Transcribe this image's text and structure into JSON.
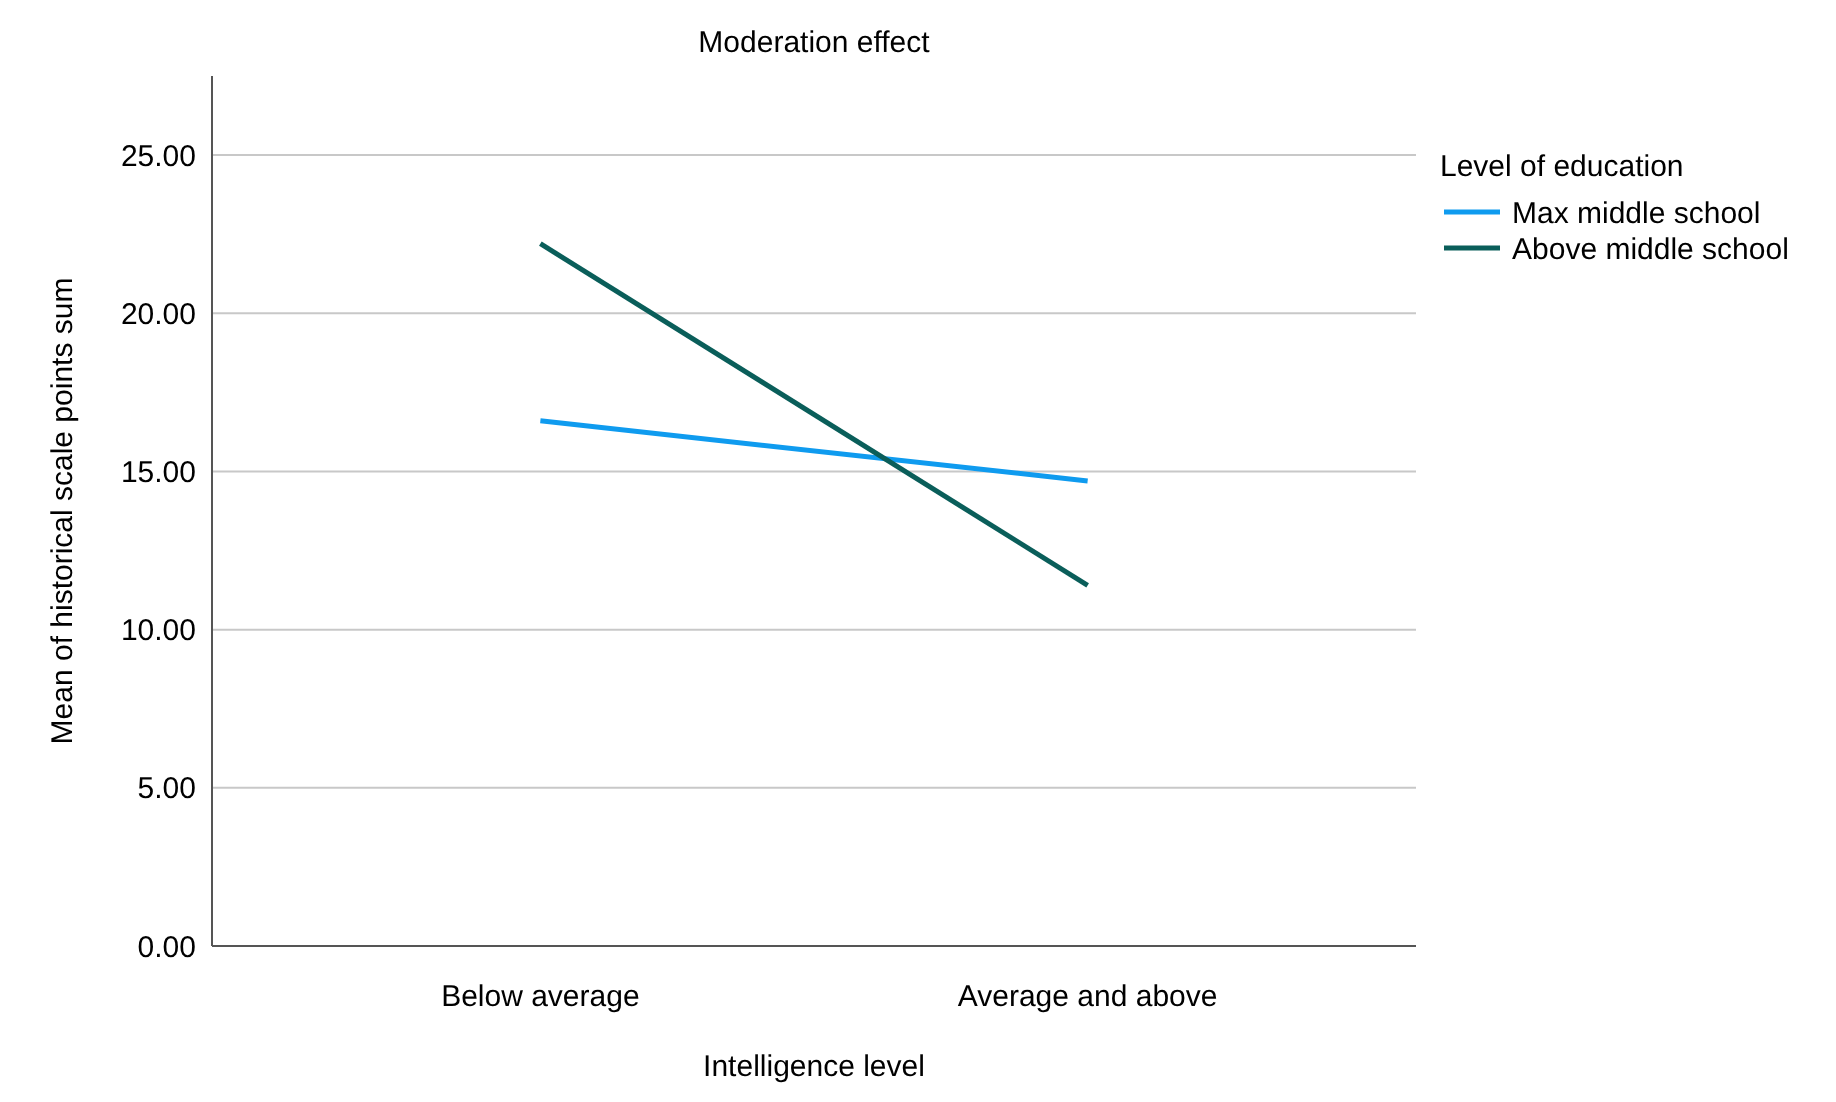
{
  "chart_data": {
    "type": "line",
    "title": "Moderation effect",
    "xlabel": "Intelligence level",
    "ylabel": "Mean of historical scale points sum",
    "legend_title": "Level of education",
    "categories": [
      "Below average",
      "Average and above"
    ],
    "series": [
      {
        "name": "Max middle school",
        "color": "#0f9bef",
        "values": [
          16.6,
          14.7
        ]
      },
      {
        "name": "Above middle school",
        "color": "#0a5e5a",
        "values": [
          22.2,
          11.4
        ]
      }
    ],
    "ylim": [
      0,
      27.5
    ],
    "yticks": [
      {
        "value": 0,
        "label": "0.00"
      },
      {
        "value": 5,
        "label": "5.00"
      },
      {
        "value": 10,
        "label": "10.00"
      },
      {
        "value": 15,
        "label": "15.00"
      },
      {
        "value": 20,
        "label": "20.00"
      },
      {
        "value": 25,
        "label": "25.00"
      }
    ],
    "grid": "y",
    "legend": "right",
    "marker": "none",
    "line_style": "solid"
  }
}
